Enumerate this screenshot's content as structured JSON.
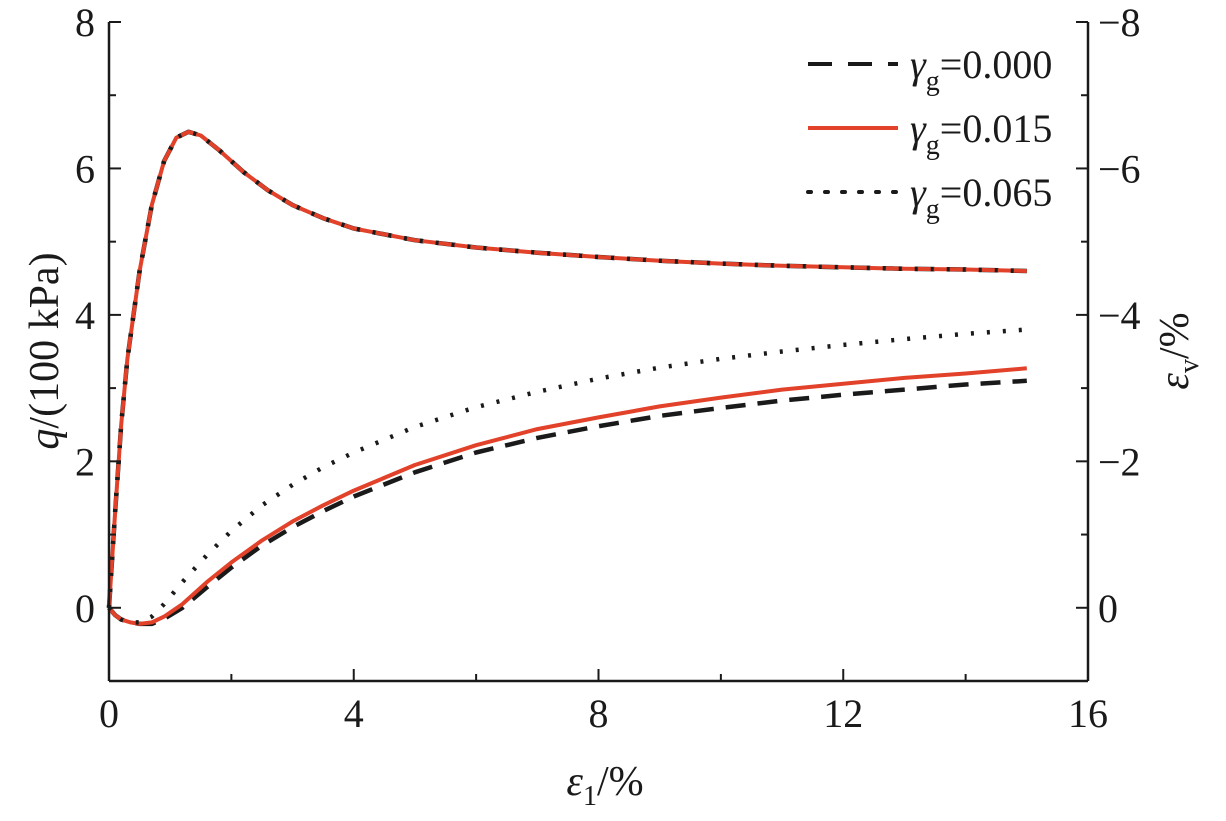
{
  "chart_data": {
    "type": "line",
    "x_axis": {
      "label_symbol": "ε",
      "label_subscript": "1",
      "label_suffix": "/%",
      "range": [
        0,
        16
      ],
      "ticks": [
        0,
        4,
        8,
        12,
        16
      ],
      "tick_labels": [
        "0",
        "4",
        "8",
        "12",
        "16"
      ]
    },
    "y_axis_left": {
      "label_symbol": "q",
      "label_suffix": "/(100 kPa)",
      "range": [
        -1,
        8
      ],
      "ticks": [
        0,
        2,
        4,
        6,
        8
      ],
      "tick_labels": [
        "0",
        "2",
        "4",
        "6",
        "8"
      ]
    },
    "y_axis_right": {
      "label_symbol": "ε",
      "label_subscript": "v",
      "label_suffix": "/%",
      "range": [
        1,
        -8
      ],
      "ticks": [
        0,
        -2,
        -4,
        -6,
        -8
      ],
      "tick_labels": [
        "0",
        "−2",
        "−4",
        "−6",
        "−8"
      ]
    },
    "legend_position": "top-right",
    "series": [
      {
        "name": "γg=0.000",
        "legend_symbol": "γ",
        "legend_subscript": "g",
        "legend_value": "=0.000",
        "style": "dashed",
        "color": "#1a1a1a",
        "deviator_stress": [
          [
            0,
            0
          ],
          [
            0.1,
            1.3
          ],
          [
            0.2,
            2.5
          ],
          [
            0.3,
            3.4
          ],
          [
            0.5,
            4.6
          ],
          [
            0.7,
            5.5
          ],
          [
            0.9,
            6.1
          ],
          [
            1.1,
            6.42
          ],
          [
            1.3,
            6.5
          ],
          [
            1.5,
            6.45
          ],
          [
            1.8,
            6.25
          ],
          [
            2.2,
            5.95
          ],
          [
            2.6,
            5.7
          ],
          [
            3.0,
            5.5
          ],
          [
            3.5,
            5.32
          ],
          [
            4.0,
            5.18
          ],
          [
            5.0,
            5.02
          ],
          [
            6.0,
            4.92
          ],
          [
            7.0,
            4.85
          ],
          [
            8.0,
            4.79
          ],
          [
            9.0,
            4.74
          ],
          [
            10.0,
            4.7
          ],
          [
            11.0,
            4.67
          ],
          [
            12.0,
            4.65
          ],
          [
            13.0,
            4.63
          ],
          [
            14.0,
            4.62
          ],
          [
            15.0,
            4.6
          ]
        ],
        "volumetric_strain": [
          [
            0,
            0
          ],
          [
            0.1,
            0.1
          ],
          [
            0.2,
            0.16
          ],
          [
            0.35,
            0.2
          ],
          [
            0.5,
            0.22
          ],
          [
            0.7,
            0.22
          ],
          [
            0.9,
            0.15
          ],
          [
            1.2,
            0
          ],
          [
            1.6,
            -0.28
          ],
          [
            2.0,
            -0.55
          ],
          [
            2.5,
            -0.85
          ],
          [
            3.0,
            -1.1
          ],
          [
            3.5,
            -1.32
          ],
          [
            4.0,
            -1.52
          ],
          [
            5.0,
            -1.85
          ],
          [
            6.0,
            -2.12
          ],
          [
            7.0,
            -2.32
          ],
          [
            8.0,
            -2.48
          ],
          [
            9.0,
            -2.62
          ],
          [
            10.0,
            -2.73
          ],
          [
            11.0,
            -2.83
          ],
          [
            12.0,
            -2.91
          ],
          [
            13.0,
            -2.98
          ],
          [
            14.0,
            -3.05
          ],
          [
            15.0,
            -3.1
          ]
        ]
      },
      {
        "name": "γg=0.015",
        "legend_symbol": "γ",
        "legend_subscript": "g",
        "legend_value": "=0.015",
        "style": "solid",
        "color": "#e2412a",
        "deviator_stress": [
          [
            0,
            0
          ],
          [
            0.1,
            1.3
          ],
          [
            0.2,
            2.5
          ],
          [
            0.3,
            3.4
          ],
          [
            0.5,
            4.6
          ],
          [
            0.7,
            5.5
          ],
          [
            0.9,
            6.1
          ],
          [
            1.1,
            6.42
          ],
          [
            1.3,
            6.5
          ],
          [
            1.5,
            6.45
          ],
          [
            1.8,
            6.25
          ],
          [
            2.2,
            5.95
          ],
          [
            2.6,
            5.7
          ],
          [
            3.0,
            5.5
          ],
          [
            3.5,
            5.32
          ],
          [
            4.0,
            5.18
          ],
          [
            5.0,
            5.02
          ],
          [
            6.0,
            4.92
          ],
          [
            7.0,
            4.85
          ],
          [
            8.0,
            4.79
          ],
          [
            9.0,
            4.74
          ],
          [
            10.0,
            4.7
          ],
          [
            11.0,
            4.67
          ],
          [
            12.0,
            4.65
          ],
          [
            13.0,
            4.63
          ],
          [
            14.0,
            4.62
          ],
          [
            15.0,
            4.6
          ]
        ],
        "volumetric_strain": [
          [
            0,
            0
          ],
          [
            0.1,
            0.1
          ],
          [
            0.2,
            0.16
          ],
          [
            0.35,
            0.2
          ],
          [
            0.5,
            0.22
          ],
          [
            0.7,
            0.2
          ],
          [
            0.9,
            0.12
          ],
          [
            1.2,
            -0.05
          ],
          [
            1.6,
            -0.35
          ],
          [
            2.0,
            -0.62
          ],
          [
            2.5,
            -0.92
          ],
          [
            3.0,
            -1.18
          ],
          [
            3.5,
            -1.4
          ],
          [
            4.0,
            -1.6
          ],
          [
            5.0,
            -1.95
          ],
          [
            6.0,
            -2.22
          ],
          [
            7.0,
            -2.44
          ],
          [
            8.0,
            -2.6
          ],
          [
            9.0,
            -2.75
          ],
          [
            10.0,
            -2.87
          ],
          [
            11.0,
            -2.98
          ],
          [
            12.0,
            -3.06
          ],
          [
            13.0,
            -3.14
          ],
          [
            14.0,
            -3.2
          ],
          [
            15.0,
            -3.27
          ]
        ]
      },
      {
        "name": "γg=0.065",
        "legend_symbol": "γ",
        "legend_subscript": "g",
        "legend_value": "=0.065",
        "style": "dotted",
        "color": "#1a1a1a",
        "deviator_stress": [
          [
            0,
            0
          ],
          [
            0.1,
            1.3
          ],
          [
            0.2,
            2.5
          ],
          [
            0.3,
            3.4
          ],
          [
            0.5,
            4.6
          ],
          [
            0.7,
            5.5
          ],
          [
            0.9,
            6.1
          ],
          [
            1.1,
            6.42
          ],
          [
            1.3,
            6.5
          ],
          [
            1.5,
            6.45
          ],
          [
            1.8,
            6.25
          ],
          [
            2.2,
            5.95
          ],
          [
            2.6,
            5.7
          ],
          [
            3.0,
            5.5
          ],
          [
            3.5,
            5.32
          ],
          [
            4.0,
            5.18
          ],
          [
            5.0,
            5.02
          ],
          [
            6.0,
            4.92
          ],
          [
            7.0,
            4.85
          ],
          [
            8.0,
            4.79
          ],
          [
            9.0,
            4.74
          ],
          [
            10.0,
            4.7
          ],
          [
            11.0,
            4.67
          ],
          [
            12.0,
            4.65
          ],
          [
            13.0,
            4.63
          ],
          [
            14.0,
            4.62
          ],
          [
            15.0,
            4.6
          ]
        ],
        "volumetric_strain": [
          [
            0,
            0
          ],
          [
            0.1,
            0.1
          ],
          [
            0.2,
            0.16
          ],
          [
            0.35,
            0.2
          ],
          [
            0.5,
            0.2
          ],
          [
            0.7,
            0.12
          ],
          [
            0.9,
            -0.05
          ],
          [
            1.2,
            -0.35
          ],
          [
            1.6,
            -0.72
          ],
          [
            2.0,
            -1.05
          ],
          [
            2.5,
            -1.4
          ],
          [
            3.0,
            -1.68
          ],
          [
            3.5,
            -1.92
          ],
          [
            4.0,
            -2.12
          ],
          [
            5.0,
            -2.47
          ],
          [
            6.0,
            -2.74
          ],
          [
            7.0,
            -2.95
          ],
          [
            8.0,
            -3.13
          ],
          [
            9.0,
            -3.28
          ],
          [
            10.0,
            -3.4
          ],
          [
            11.0,
            -3.5
          ],
          [
            12.0,
            -3.59
          ],
          [
            13.0,
            -3.67
          ],
          [
            14.0,
            -3.74
          ],
          [
            15.0,
            -3.8
          ]
        ]
      }
    ]
  }
}
